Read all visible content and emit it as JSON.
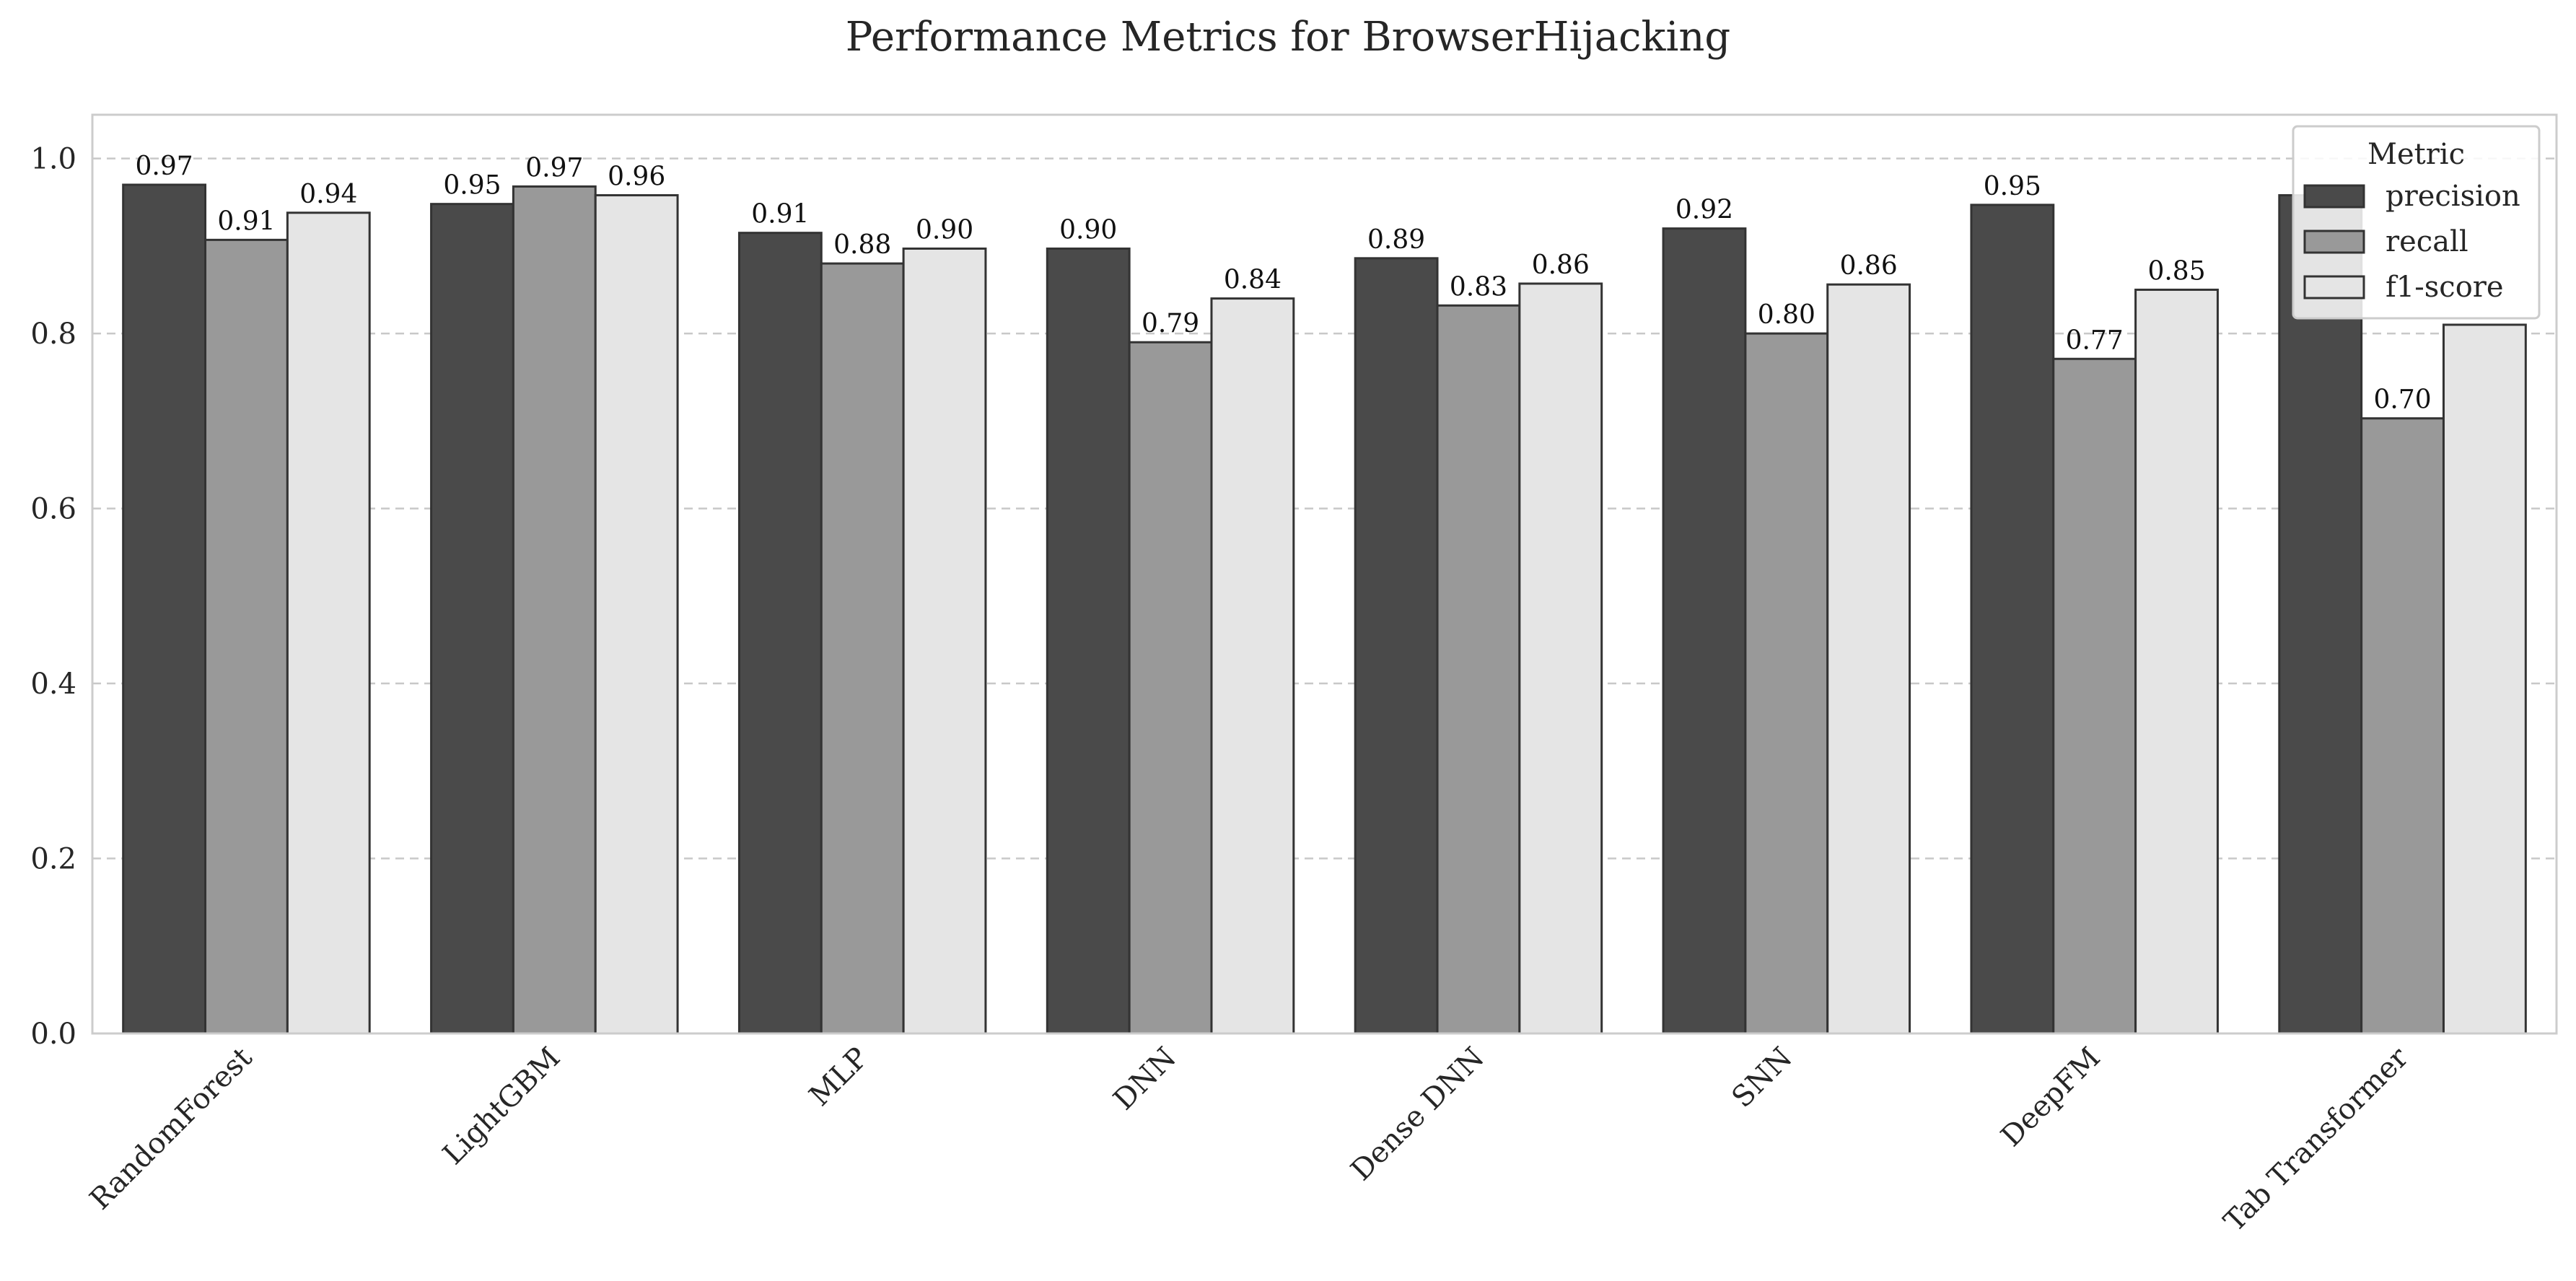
{
  "chart_data": {
    "type": "bar",
    "title": "Performance Metrics for BrowserHijacking",
    "xlabel": "",
    "ylabel": "",
    "ylim": [
      0,
      1.05
    ],
    "yticks": [
      0.0,
      0.2,
      0.4,
      0.6,
      0.8,
      1.0
    ],
    "ytick_labels": [
      "0.0",
      "0.2",
      "0.4",
      "0.6",
      "0.8",
      "1.0"
    ],
    "grid": "horizontal-dashed",
    "categories": [
      "RandomForest",
      "LightGBM",
      "MLP",
      "DNN",
      "Dense DNN",
      "SNN",
      "DeepFM",
      "Tab Transformer"
    ],
    "series": [
      {
        "name": "precision",
        "color": "#4a4a4a",
        "values": [
          0.97,
          0.948,
          0.915,
          0.897,
          0.886,
          0.92,
          0.947,
          0.958
        ],
        "labels": [
          "0.97",
          "0.95",
          "0.91",
          "0.90",
          "0.89",
          "0.92",
          "0.95",
          ""
        ]
      },
      {
        "name": "recall",
        "color": "#999999",
        "values": [
          0.907,
          0.968,
          0.88,
          0.79,
          0.832,
          0.8,
          0.771,
          0.703
        ],
        "labels": [
          "0.91",
          "0.97",
          "0.88",
          "0.79",
          "0.83",
          "0.80",
          "0.77",
          "0.70"
        ]
      },
      {
        "name": "f1-score",
        "color": "#e5e5e5",
        "values": [
          0.938,
          0.958,
          0.897,
          0.84,
          0.857,
          0.856,
          0.85,
          0.81
        ],
        "labels": [
          "0.94",
          "0.96",
          "0.90",
          "0.84",
          "0.86",
          "0.86",
          "0.85",
          ""
        ]
      }
    ],
    "legend": {
      "title": "Metric",
      "placement": "top-right"
    }
  }
}
